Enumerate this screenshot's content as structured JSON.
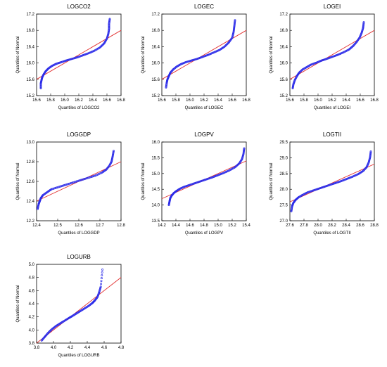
{
  "chart_data": [
    {
      "type": "scatter",
      "title": "LOGCO2",
      "xlabel": "Quantiles of LOGCO2",
      "ylabel": "Quantiles of Normal",
      "xlim": [
        15.6,
        16.8
      ],
      "ylim": [
        15.2,
        17.2
      ],
      "xticks": [
        "15.6",
        "15.8",
        "16.0",
        "16.2",
        "16.4",
        "16.6",
        "16.8"
      ],
      "yticks": [
        "15.2",
        "15.6",
        "16.0",
        "16.4",
        "16.8",
        "17.2"
      ],
      "reference_line": [
        [
          15.6,
          15.6
        ],
        [
          16.8,
          16.8
        ]
      ],
      "series": [
        {
          "x": [
            15.66,
            15.66,
            15.67,
            15.68,
            15.7,
            15.73,
            15.77,
            15.82,
            15.88,
            15.95,
            16.02,
            16.1,
            16.18,
            16.26,
            16.34,
            16.42,
            16.5,
            16.56,
            16.6,
            16.62,
            16.63,
            16.63,
            16.64
          ],
          "y": [
            15.38,
            15.5,
            15.58,
            15.65,
            15.72,
            15.8,
            15.87,
            15.93,
            15.98,
            16.02,
            16.06,
            16.1,
            16.14,
            16.19,
            16.24,
            16.3,
            16.38,
            16.48,
            16.6,
            16.72,
            16.84,
            16.96,
            17.08
          ]
        }
      ],
      "colors": {
        "points": "#2a2ae8",
        "line": "#e23030"
      }
    },
    {
      "type": "scatter",
      "title": "LOGEC",
      "xlabel": "Quantiles of LOGEC",
      "ylabel": "Quantiles of Normal",
      "xlim": [
        15.6,
        16.8
      ],
      "ylim": [
        15.2,
        17.2
      ],
      "xticks": [
        "15.6",
        "15.8",
        "16.0",
        "16.2",
        "16.4",
        "16.6",
        "16.8"
      ],
      "yticks": [
        "15.2",
        "15.6",
        "16.0",
        "16.4",
        "16.8",
        "17.2"
      ],
      "reference_line": [
        [
          15.6,
          15.6
        ],
        [
          16.8,
          16.8
        ]
      ],
      "series": [
        {
          "x": [
            15.66,
            15.67,
            15.68,
            15.7,
            15.72,
            15.76,
            15.81,
            15.87,
            15.94,
            16.02,
            16.1,
            16.18,
            16.26,
            16.34,
            16.42,
            16.49,
            16.55,
            16.6,
            16.62,
            16.63,
            16.64
          ],
          "y": [
            15.4,
            15.52,
            15.6,
            15.68,
            15.76,
            15.84,
            15.91,
            15.97,
            16.02,
            16.06,
            16.1,
            16.15,
            16.2,
            16.26,
            16.32,
            16.4,
            16.5,
            16.62,
            16.76,
            16.9,
            17.05
          ]
        }
      ],
      "colors": {
        "points": "#2a2ae8",
        "line": "#e23030"
      }
    },
    {
      "type": "scatter",
      "title": "LOGEI",
      "xlabel": "Quantiles of LOGEI",
      "ylabel": "Quantiles of Normal",
      "xlim": [
        15.6,
        16.8
      ],
      "ylim": [
        15.2,
        17.2
      ],
      "xticks": [
        "15.6",
        "15.8",
        "16.0",
        "16.2",
        "16.4",
        "16.6",
        "16.8"
      ],
      "yticks": [
        "15.2",
        "15.6",
        "16.0",
        "16.4",
        "16.8",
        "17.2"
      ],
      "reference_line": [
        [
          15.6,
          15.6
        ],
        [
          16.8,
          16.8
        ]
      ],
      "series": [
        {
          "x": [
            15.64,
            15.65,
            15.67,
            15.7,
            15.73,
            15.78,
            15.84,
            15.9,
            15.98,
            16.05,
            16.12,
            16.2,
            16.28,
            16.36,
            16.44,
            16.5,
            16.55,
            16.59,
            16.62,
            16.64,
            16.65
          ],
          "y": [
            15.38,
            15.48,
            15.58,
            15.68,
            15.76,
            15.84,
            15.9,
            15.96,
            16.01,
            16.06,
            16.1,
            16.15,
            16.2,
            16.26,
            16.33,
            16.42,
            16.52,
            16.62,
            16.74,
            16.86,
            17.0
          ]
        }
      ],
      "colors": {
        "points": "#2a2ae8",
        "line": "#e23030"
      }
    },
    {
      "type": "scatter",
      "title": "LOGGDP",
      "xlabel": "Quantiles of LOGGDP",
      "ylabel": "Quantiles of Normal",
      "xlim": [
        12.4,
        12.8
      ],
      "ylim": [
        12.2,
        13.0
      ],
      "xticks": [
        "12.4",
        "12.5",
        "12.6",
        "12.7",
        "12.8"
      ],
      "yticks": [
        "12.2",
        "12.4",
        "12.6",
        "12.8",
        "13.0"
      ],
      "reference_line": [
        [
          12.4,
          12.4
        ],
        [
          12.8,
          12.8
        ]
      ],
      "series": [
        {
          "x": [
            12.405,
            12.41,
            12.415,
            12.42,
            12.43,
            12.45,
            12.47,
            12.5,
            12.53,
            12.56,
            12.59,
            12.62,
            12.65,
            12.68,
            12.71,
            12.73,
            12.745,
            12.755,
            12.76,
            12.765
          ],
          "y": [
            12.32,
            12.37,
            12.4,
            12.43,
            12.46,
            12.49,
            12.52,
            12.54,
            12.56,
            12.58,
            12.6,
            12.62,
            12.64,
            12.66,
            12.69,
            12.72,
            12.76,
            12.8,
            12.85,
            12.91
          ]
        }
      ],
      "colors": {
        "points": "#2a2ae8",
        "line": "#e23030"
      }
    },
    {
      "type": "scatter",
      "title": "LOGPV",
      "xlabel": "Quantiles of LOGPV",
      "ylabel": "Quantiles of Normal",
      "xlim": [
        14.2,
        15.4
      ],
      "ylim": [
        13.5,
        16.0
      ],
      "xticks": [
        "14.2",
        "14.4",
        "14.6",
        "14.8",
        "15.0",
        "15.2",
        "15.4"
      ],
      "yticks": [
        "13.5",
        "14.0",
        "14.5",
        "15.0",
        "15.5",
        "16.0"
      ],
      "reference_line": [
        [
          14.2,
          14.2
        ],
        [
          15.4,
          15.4
        ]
      ],
      "series": [
        {
          "x": [
            14.3,
            14.31,
            14.32,
            14.34,
            14.37,
            14.41,
            14.46,
            14.52,
            14.6,
            14.68,
            14.76,
            14.84,
            14.92,
            15.0,
            15.08,
            15.16,
            15.24,
            15.3,
            15.34,
            15.36,
            15.37
          ],
          "y": [
            14.0,
            14.12,
            14.22,
            14.3,
            14.38,
            14.45,
            14.52,
            14.58,
            14.64,
            14.7,
            14.76,
            14.82,
            14.88,
            14.95,
            15.02,
            15.1,
            15.2,
            15.32,
            15.46,
            15.62,
            15.8
          ]
        }
      ],
      "colors": {
        "points": "#2a2ae8",
        "line": "#e23030"
      }
    },
    {
      "type": "scatter",
      "title": "LOGTII",
      "xlabel": "Quantiles of LOGTII",
      "ylabel": "Quantiles of Normal",
      "xlim": [
        27.6,
        28.8
      ],
      "ylim": [
        27.0,
        29.5
      ],
      "xticks": [
        "27.6",
        "27.8",
        "28.0",
        "28.2",
        "28.4",
        "28.6",
        "28.8"
      ],
      "yticks": [
        "27.0",
        "27.5",
        "28.0",
        "28.5",
        "29.0",
        "29.5"
      ],
      "reference_line": [
        [
          27.6,
          27.6
        ],
        [
          28.8,
          28.8
        ]
      ],
      "series": [
        {
          "x": [
            27.62,
            27.63,
            27.65,
            27.68,
            27.72,
            27.78,
            27.85,
            27.93,
            28.01,
            28.09,
            28.17,
            28.25,
            28.33,
            28.41,
            28.49,
            28.57,
            28.64,
            28.69,
            28.72,
            28.74,
            28.75
          ],
          "y": [
            27.3,
            27.45,
            27.57,
            27.66,
            27.74,
            27.82,
            27.9,
            27.96,
            28.02,
            28.08,
            28.14,
            28.2,
            28.26,
            28.33,
            28.4,
            28.48,
            28.58,
            28.7,
            28.85,
            29.02,
            29.2
          ]
        }
      ],
      "colors": {
        "points": "#2a2ae8",
        "line": "#e23030"
      }
    },
    {
      "type": "scatter",
      "title": "LOGURB",
      "xlabel": "Quantiles of LOGURB",
      "ylabel": "Quantiles of Normal",
      "xlim": [
        3.8,
        4.8
      ],
      "ylim": [
        3.8,
        5.0
      ],
      "xticks": [
        "3.8",
        "4.0",
        "4.2",
        "4.4",
        "4.6",
        "4.8"
      ],
      "yticks": [
        "3.8",
        "4.0",
        "4.2",
        "4.4",
        "4.6",
        "4.8",
        "5.0"
      ],
      "reference_line": [
        [
          3.8,
          3.8
        ],
        [
          4.8,
          4.8
        ]
      ],
      "series": [
        {
          "x": [
            3.86,
            3.9,
            3.94,
            3.98,
            4.03,
            4.08,
            4.13,
            4.18,
            4.22,
            4.27,
            4.32,
            4.37,
            4.42,
            4.46,
            4.49,
            4.52,
            4.54,
            4.56,
            4.58
          ],
          "y": [
            3.84,
            3.9,
            3.96,
            4.01,
            4.06,
            4.1,
            4.14,
            4.18,
            4.21,
            4.25,
            4.29,
            4.33,
            4.37,
            4.41,
            4.45,
            4.5,
            4.57,
            4.66,
            4.92
          ]
        }
      ],
      "colors": {
        "points": "#2a2ae8",
        "line": "#e23030"
      }
    }
  ]
}
